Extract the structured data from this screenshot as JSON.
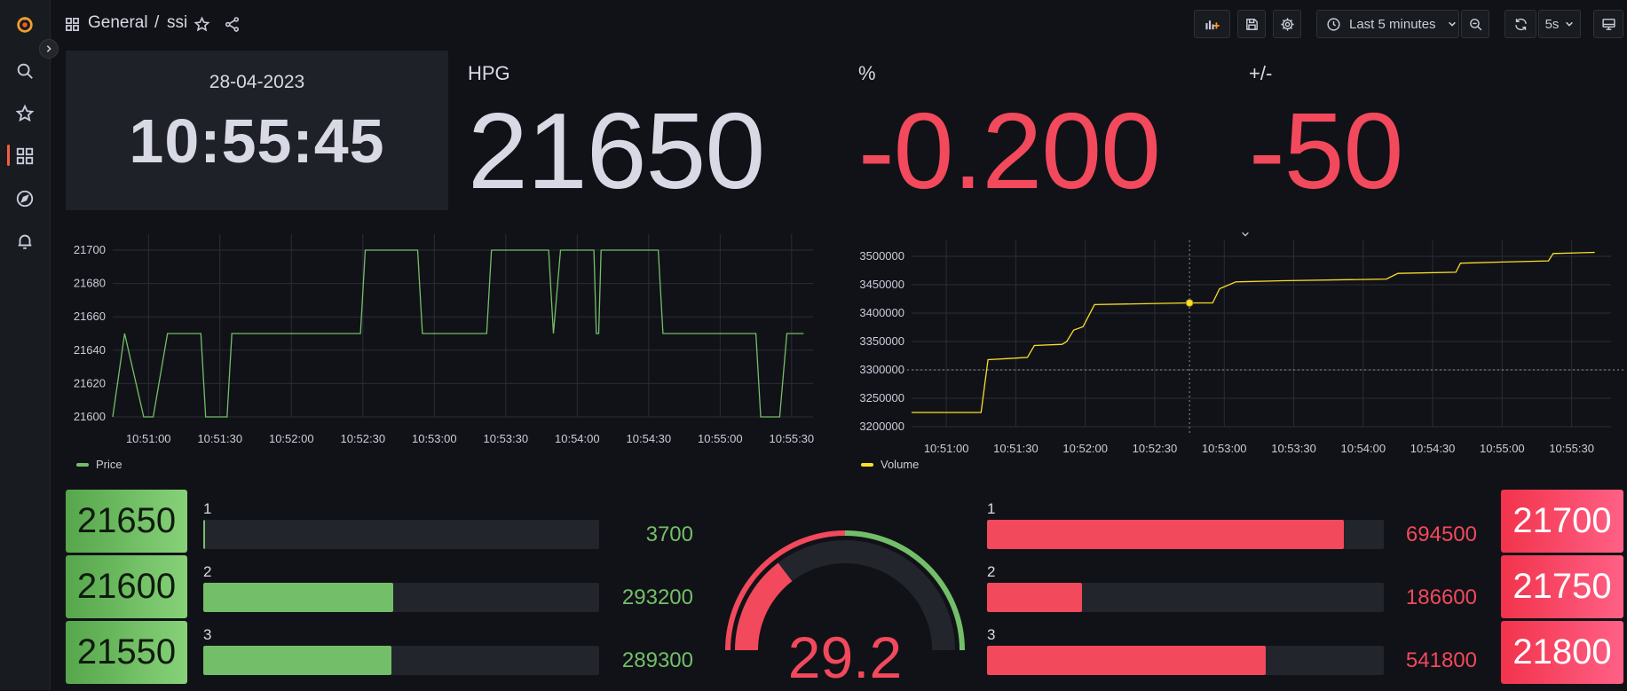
{
  "nav": {
    "icons": [
      "grafana-logo-icon",
      "search-icon",
      "starred-icon",
      "dashboards-icon",
      "explore-icon",
      "alerting-icon"
    ]
  },
  "header": {
    "folder": "General",
    "separator": "/",
    "dashboard": "ssi",
    "time_range": "Last 5 minutes",
    "refresh": "5s"
  },
  "clock": {
    "date": "28-04-2023",
    "time": "10:55:45"
  },
  "stats": [
    {
      "title": "HPG",
      "value": "21650",
      "color": "#d8d9e4"
    },
    {
      "title": "%",
      "value": "-0.200",
      "color": "#f2495c"
    },
    {
      "title": "+/-",
      "value": "-50",
      "color": "#f2495c"
    }
  ],
  "bids": {
    "prices": [
      "21650",
      "21600",
      "21550"
    ],
    "levels": [
      {
        "label": "1",
        "value": "3700",
        "fraction": 0.005
      },
      {
        "label": "2",
        "value": "293200",
        "fraction": 0.48
      },
      {
        "label": "3",
        "value": "289300",
        "fraction": 0.475
      }
    ],
    "color": "#73bf69"
  },
  "asks": {
    "prices": [
      "21700",
      "21750",
      "21800"
    ],
    "levels": [
      {
        "label": "1",
        "value": "694500",
        "fraction": 0.9
      },
      {
        "label": "2",
        "value": "186600",
        "fraction": 0.24
      },
      {
        "label": "3",
        "value": "541800",
        "fraction": 0.703
      }
    ],
    "color": "#f2495c"
  },
  "gauge": {
    "value": "29.2",
    "numeric": 29.2,
    "min": 0,
    "max": 100,
    "threshold_fraction": 0.5
  },
  "chart_data": [
    {
      "type": "line",
      "series": [
        {
          "name": "Price",
          "color": "#73bf69"
        }
      ],
      "x_ticks": [
        "10:51:00",
        "10:51:30",
        "10:52:00",
        "10:52:30",
        "10:53:00",
        "10:53:30",
        "10:54:00",
        "10:54:30",
        "10:55:00",
        "10:55:30"
      ],
      "y_ticks": [
        "21700",
        "21680",
        "21660",
        "21640",
        "21620",
        "21600"
      ],
      "ylim": [
        21600,
        21700
      ],
      "points": [
        [
          "10:50:45",
          21600
        ],
        [
          "10:50:50",
          21650
        ],
        [
          "10:50:58",
          21600
        ],
        [
          "10:51:02",
          21600
        ],
        [
          "10:51:08",
          21650
        ],
        [
          "10:51:22",
          21650
        ],
        [
          "10:51:24",
          21600
        ],
        [
          "10:51:33",
          21600
        ],
        [
          "10:51:35",
          21650
        ],
        [
          "10:52:29",
          21650
        ],
        [
          "10:52:31",
          21700
        ],
        [
          "10:52:53",
          21700
        ],
        [
          "10:52:55",
          21650
        ],
        [
          "10:53:22",
          21650
        ],
        [
          "10:53:24",
          21700
        ],
        [
          "10:53:48",
          21700
        ],
        [
          "10:53:50",
          21650
        ],
        [
          "10:53:53",
          21700
        ],
        [
          "10:54:07",
          21700
        ],
        [
          "10:54:08",
          21650
        ],
        [
          "10:54:09",
          21650
        ],
        [
          "10:54:10",
          21700
        ],
        [
          "10:54:34",
          21700
        ],
        [
          "10:54:36",
          21650
        ],
        [
          "10:55:15",
          21650
        ],
        [
          "10:55:17",
          21600
        ],
        [
          "10:55:25",
          21600
        ],
        [
          "10:55:28",
          21650
        ],
        [
          "10:55:35",
          21650
        ]
      ]
    },
    {
      "type": "line",
      "series": [
        {
          "name": "Volume",
          "color": "#fade2a"
        }
      ],
      "x_ticks": [
        "10:51:00",
        "10:51:30",
        "10:52:00",
        "10:52:30",
        "10:53:00",
        "10:53:30",
        "10:54:00",
        "10:54:30",
        "10:55:00",
        "10:55:30"
      ],
      "y_ticks": [
        "3500000",
        "3450000",
        "3400000",
        "3350000",
        "3300000",
        "3250000",
        "3200000"
      ],
      "ylim": [
        3200000,
        3500000
      ],
      "threshold": 3300000,
      "hover_time": "10:52:45",
      "points": [
        [
          "10:50:45",
          3225000
        ],
        [
          "10:51:15",
          3225000
        ],
        [
          "10:51:18",
          3318000
        ],
        [
          "10:51:27",
          3320000
        ],
        [
          "10:51:35",
          3322000
        ],
        [
          "10:51:38",
          3343000
        ],
        [
          "10:51:50",
          3345000
        ],
        [
          "10:51:52",
          3350000
        ],
        [
          "10:51:55",
          3370000
        ],
        [
          "10:51:59",
          3376000
        ],
        [
          "10:52:04",
          3415000
        ],
        [
          "10:52:44",
          3418000
        ],
        [
          "10:52:55",
          3418000
        ],
        [
          "10:52:58",
          3443000
        ],
        [
          "10:53:05",
          3455000
        ],
        [
          "10:53:25",
          3457000
        ],
        [
          "10:54:10",
          3460000
        ],
        [
          "10:54:15",
          3470000
        ],
        [
          "10:54:40",
          3472000
        ],
        [
          "10:54:42",
          3488000
        ],
        [
          "10:55:00",
          3490000
        ],
        [
          "10:55:20",
          3492000
        ],
        [
          "10:55:22",
          3505000
        ],
        [
          "10:55:40",
          3507000
        ]
      ]
    }
  ]
}
